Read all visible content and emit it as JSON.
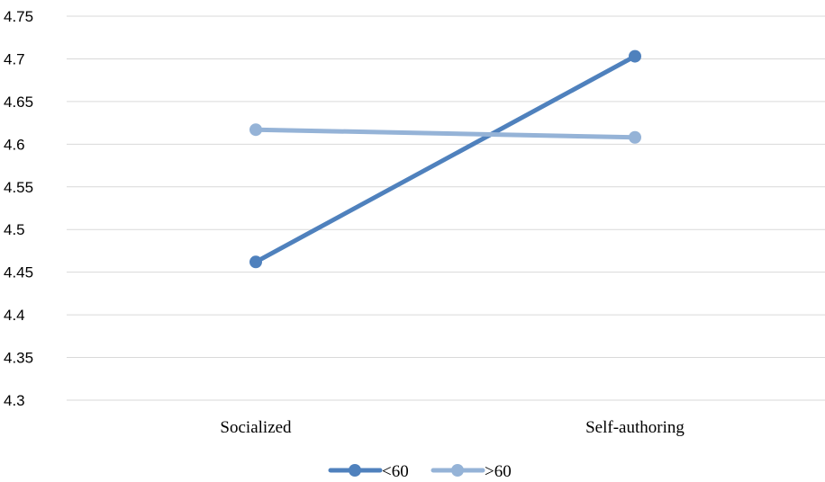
{
  "chart_data": {
    "type": "line",
    "categories": [
      "Socialized",
      "Self-authoring"
    ],
    "series": [
      {
        "name": "<60",
        "values": [
          4.462,
          4.703
        ],
        "color": "#4f81bd"
      },
      {
        "name": ">60",
        "values": [
          4.617,
          4.608
        ],
        "color": "#95b3d7"
      }
    ],
    "yticks": [
      "4.3",
      "4.35",
      "4.4",
      "4.45",
      "4.5",
      "4.55",
      "4.6",
      "4.65",
      "4.7",
      "4.75"
    ],
    "ylim": [
      4.3,
      4.75
    ],
    "grid": true,
    "legend": "bottom",
    "title": "",
    "xlabel": "",
    "ylabel": ""
  }
}
